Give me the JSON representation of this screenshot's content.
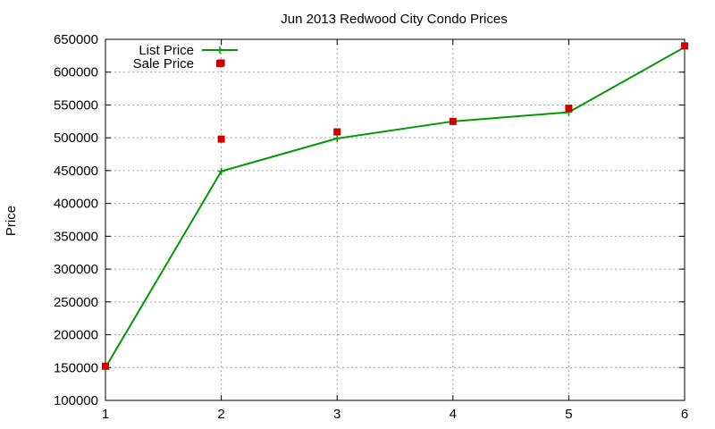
{
  "chart_data": {
    "type": "line",
    "title": "Jun 2013 Redwood City Condo Prices",
    "xlabel": "",
    "ylabel": "Price",
    "x": [
      1,
      2,
      3,
      4,
      5,
      6
    ],
    "xlim": [
      1,
      6
    ],
    "ylim": [
      100000,
      650000
    ],
    "xticks": [
      1,
      2,
      3,
      4,
      5,
      6
    ],
    "yticks": [
      100000,
      150000,
      200000,
      250000,
      300000,
      350000,
      400000,
      450000,
      500000,
      550000,
      600000,
      650000
    ],
    "grid": true,
    "legend_position": "top-left",
    "series": [
      {
        "name": "List Price",
        "style": "line-with-plus-markers",
        "color": "#009900",
        "x": [
          1,
          2,
          3,
          4,
          5,
          6
        ],
        "y": [
          150000,
          449000,
          499000,
          525000,
          539000,
          638000
        ]
      },
      {
        "name": "Sale Price",
        "style": "square-points",
        "color": "#cc0000",
        "x": [
          1,
          2,
          2,
          3,
          4,
          5,
          6
        ],
        "y": [
          152000,
          614000,
          498000,
          509000,
          525000,
          545000,
          640000
        ]
      }
    ]
  }
}
